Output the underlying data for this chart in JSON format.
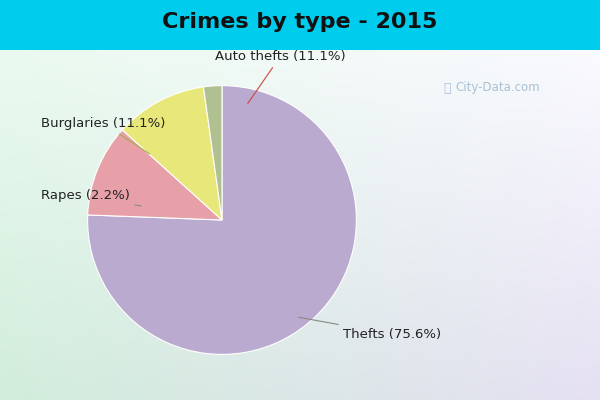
{
  "title": "Crimes by type - 2015",
  "slices": [
    {
      "label": "Thefts (75.6%)",
      "value": 75.6,
      "color": "#bbaad0"
    },
    {
      "label": "Auto thefts (11.1%)",
      "value": 11.1,
      "color": "#e8a0a8"
    },
    {
      "label": "Burglaries (11.1%)",
      "value": 11.1,
      "color": "#e8e87a"
    },
    {
      "label": "Rapes (2.2%)",
      "value": 2.2,
      "color": "#b0c090"
    }
  ],
  "bg_color_top": "#00ccee",
  "title_fontsize": 16,
  "label_fontsize": 9.5,
  "startangle": 90,
  "watermark": "City-Data.com"
}
